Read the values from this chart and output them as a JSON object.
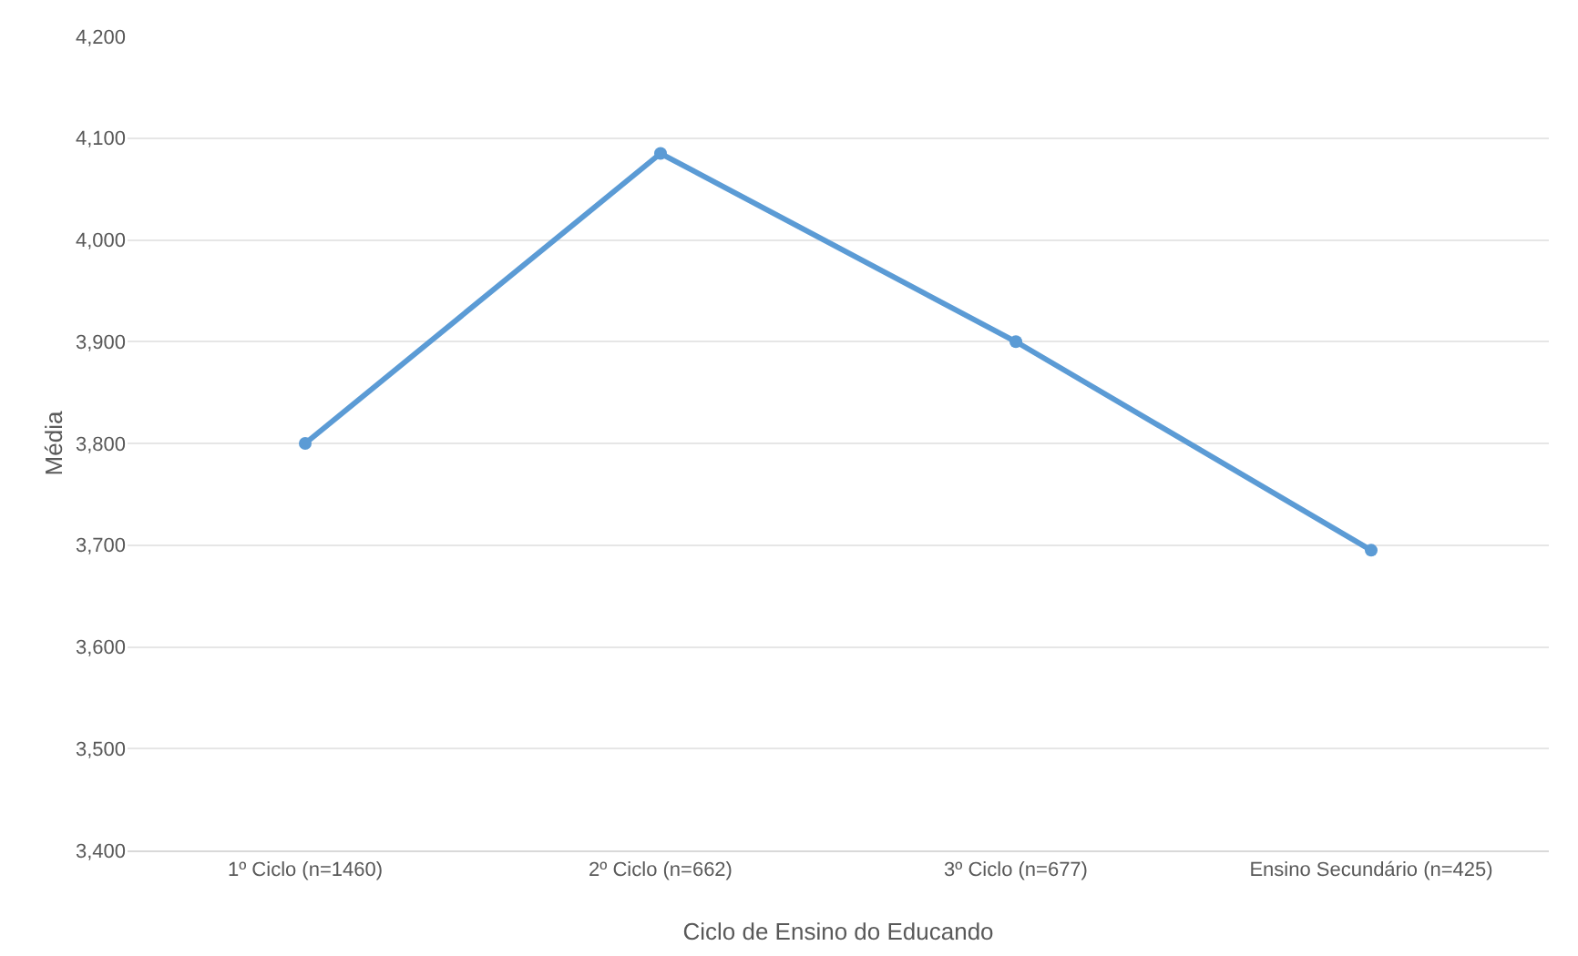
{
  "chart_data": {
    "type": "line",
    "xlabel": "Ciclo de Ensino do Educando",
    "ylabel": "Média",
    "categories": [
      "1º Ciclo (n=1460)",
      "2º Ciclo (n=662)",
      "3º Ciclo (n=677)",
      "Ensino Secundário (n=425)"
    ],
    "series": [
      {
        "color": "#5b9bd5",
        "values": [
          3800,
          4085,
          3900,
          3695
        ]
      }
    ],
    "ylim": [
      3400,
      4200
    ],
    "yticks": [
      {
        "value": 3400,
        "label": "3,400"
      },
      {
        "value": 3500,
        "label": "3,500"
      },
      {
        "value": 3600,
        "label": "3,600"
      },
      {
        "value": 3700,
        "label": "3,700"
      },
      {
        "value": 3800,
        "label": "3,800"
      },
      {
        "value": 3900,
        "label": "3,900"
      },
      {
        "value": 4000,
        "label": "4,000"
      },
      {
        "value": 4100,
        "label": "4,100"
      },
      {
        "value": 4200,
        "label": "4,200"
      }
    ],
    "grid": "y",
    "marker": "circle",
    "line_style": "solid"
  }
}
